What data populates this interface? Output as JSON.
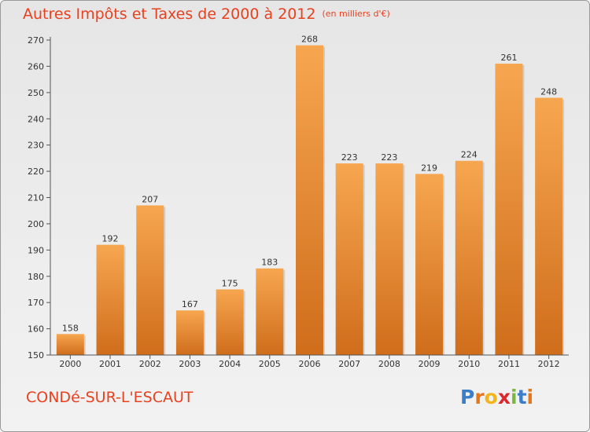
{
  "header": {
    "title": "Autres Impôts et Taxes de 2000 à 2012",
    "subtitle": "(en milliers d'€)"
  },
  "footer": {
    "commune": "CONDé-SUR-L'ESCAUT",
    "logo_letters": [
      "P",
      "r",
      "o",
      "x",
      "i",
      "t",
      "i"
    ],
    "logo_colors": [
      "#3a7ec9",
      "#e6761b",
      "#f2b51c",
      "#d9282f",
      "#7bb83f",
      "#3a7ec9",
      "#e6761b"
    ]
  },
  "colors": {
    "bar_top": "#f7a650",
    "bar_bottom": "#cf6d1b",
    "accent": "#e8411f"
  },
  "chart_data": {
    "type": "bar",
    "categories": [
      "2000",
      "2001",
      "2002",
      "2003",
      "2004",
      "2005",
      "2006",
      "2007",
      "2008",
      "2009",
      "2010",
      "2011",
      "2012"
    ],
    "values": [
      158,
      192,
      207,
      167,
      175,
      183,
      268,
      223,
      223,
      219,
      224,
      261,
      248
    ],
    "title": "Autres Impôts et Taxes de 2000 à 2012",
    "subtitle": "(en milliers d'€)",
    "ylim": [
      150,
      270
    ],
    "yticks": [
      150,
      160,
      170,
      180,
      190,
      200,
      210,
      220,
      230,
      240,
      250,
      260,
      270
    ],
    "grid": false,
    "data_labels": true
  }
}
